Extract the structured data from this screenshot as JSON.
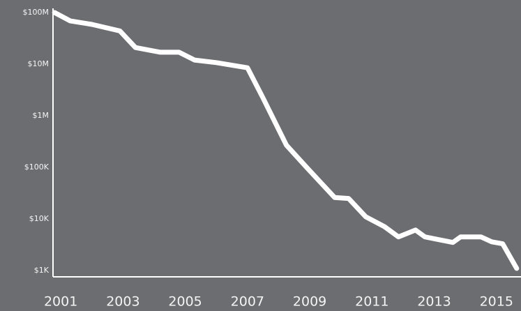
{
  "chart_data": {
    "type": "line",
    "x": [
      2000.8,
      2001.3,
      2002.0,
      2002.9,
      2003.4,
      2004.2,
      2004.8,
      2005.3,
      2006.0,
      2007.0,
      2007.5,
      2008.25,
      2008.9,
      2009.8,
      2010.25,
      2010.8,
      2011.4,
      2011.85,
      2012.4,
      2012.7,
      2013.6,
      2013.85,
      2014.5,
      2014.85,
      2015.2,
      2015.65
    ],
    "values": [
      100000000,
      69000000,
      59000000,
      44000000,
      21000000,
      17000000,
      17000000,
      12000000,
      10700000,
      8500000,
      2200000,
      270000,
      100000,
      26000,
      25000,
      11000,
      7100,
      4500,
      6100,
      4500,
      3500,
      4500,
      4500,
      3600,
      3300,
      1100
    ],
    "color": "#ffffff",
    "log_scale_y": true,
    "xlim": [
      2000.75,
      2015.7
    ],
    "xticks": [
      2001,
      2003,
      2005,
      2007,
      2009,
      2011,
      2013,
      2015
    ],
    "ylim": [
      1000,
      100000000
    ],
    "yticks": [
      {
        "value": 1000,
        "label": "$1K"
      },
      {
        "value": 10000,
        "label": "$10K"
      },
      {
        "value": 100000,
        "label": "$100K"
      },
      {
        "value": 1000000,
        "label": "$1M"
      },
      {
        "value": 10000000,
        "label": "$10M"
      },
      {
        "value": 100000000,
        "label": "$100M"
      }
    ]
  }
}
